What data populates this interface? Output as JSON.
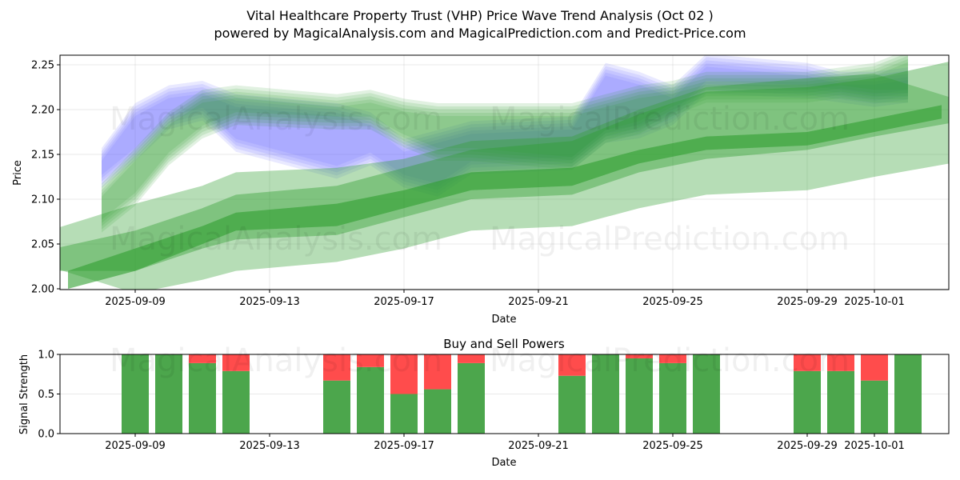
{
  "header": {
    "title": "Vital Healthcare Property Trust (VHP) Price Wave Trend Analysis (Oct 02 )",
    "subtitle": "powered by MagicalAnalysis.com and MagicalPrediction.com and Predict-Price.com"
  },
  "watermarks": [
    "MagicalAnalysis.com",
    "MagicalPrediction.com"
  ],
  "colors": {
    "blue_band": "#6666ff",
    "green_band": "#2e9e2e",
    "buy": "#4ca64c",
    "sell": "#ff4c4c"
  },
  "chart_data": [
    {
      "type": "area",
      "title": "",
      "xlabel": "Date",
      "ylabel": "Price",
      "ylim": [
        2.0,
        2.26
      ],
      "xlim": [
        "2025-09-06",
        "2025-10-04"
      ],
      "yticks": [
        "2.00",
        "2.05",
        "2.10",
        "2.15",
        "2.20",
        "2.25"
      ],
      "xticks": [
        "2025-09-09",
        "2025-09-13",
        "2025-09-17",
        "2025-09-21",
        "2025-09-25",
        "2025-09-29",
        "2025-10-01"
      ],
      "grid": true,
      "series": [
        {
          "name": "history-band-blue",
          "color": "blue",
          "x": [
            "2025-09-08",
            "2025-09-09",
            "2025-09-10",
            "2025-09-11",
            "2025-09-12",
            "2025-09-15",
            "2025-09-16",
            "2025-09-17",
            "2025-09-18",
            "2025-09-19",
            "2025-09-22",
            "2025-09-23",
            "2025-09-24",
            "2025-09-25",
            "2025-09-26",
            "2025-09-29",
            "2025-09-30",
            "2025-10-01",
            "2025-10-02"
          ],
          "upper": [
            2.15,
            2.2,
            2.22,
            2.225,
            2.21,
            2.2,
            2.19,
            2.16,
            2.17,
            2.18,
            2.185,
            2.245,
            2.235,
            2.22,
            2.255,
            2.245,
            2.235,
            2.235,
            2.24
          ],
          "lower": [
            2.12,
            2.15,
            2.185,
            2.195,
            2.16,
            2.13,
            2.145,
            2.12,
            2.11,
            2.135,
            2.14,
            2.17,
            2.175,
            2.19,
            2.225,
            2.22,
            2.215,
            2.21,
            2.215
          ]
        },
        {
          "name": "history-band-green-light",
          "color": "green",
          "x": [
            "2025-09-08",
            "2025-09-09",
            "2025-09-10",
            "2025-09-11",
            "2025-09-12",
            "2025-09-15",
            "2025-09-16",
            "2025-09-17",
            "2025-09-18",
            "2025-09-19",
            "2025-09-22",
            "2025-09-23",
            "2025-09-24",
            "2025-09-25",
            "2025-09-26",
            "2025-09-29",
            "2025-09-30",
            "2025-10-01",
            "2025-10-02"
          ],
          "upper": [
            2.11,
            2.15,
            2.19,
            2.215,
            2.22,
            2.21,
            2.215,
            2.205,
            2.2,
            2.2,
            2.2,
            2.21,
            2.22,
            2.225,
            2.235,
            2.235,
            2.24,
            2.245,
            2.26
          ],
          "lower": [
            2.07,
            2.1,
            2.145,
            2.175,
            2.19,
            2.185,
            2.185,
            2.165,
            2.15,
            2.15,
            2.14,
            2.17,
            2.18,
            2.2,
            2.215,
            2.215,
            2.22,
            2.215,
            2.215
          ]
        },
        {
          "name": "forecast-band-wide",
          "color": "green",
          "x": [
            "2025-09-06",
            "2025-09-09",
            "2025-09-11",
            "2025-09-12",
            "2025-09-15",
            "2025-09-17",
            "2025-09-18",
            "2025-09-19",
            "2025-09-22",
            "2025-09-24",
            "2025-09-26",
            "2025-09-29",
            "2025-10-01",
            "2025-10-04"
          ],
          "upper": [
            2.06,
            2.095,
            2.115,
            2.13,
            2.135,
            2.145,
            2.155,
            2.165,
            2.17,
            2.2,
            2.225,
            2.235,
            2.24,
            2.205
          ],
          "lower": [
            2.03,
            1.995,
            2.01,
            2.02,
            2.03,
            2.045,
            2.055,
            2.065,
            2.07,
            2.09,
            2.105,
            2.11,
            2.125,
            2.145
          ]
        },
        {
          "name": "forecast-band-mid",
          "color": "green",
          "x": [
            "2025-09-06",
            "2025-09-09",
            "2025-09-11",
            "2025-09-12",
            "2025-09-15",
            "2025-09-17",
            "2025-09-18",
            "2025-09-19",
            "2025-09-22",
            "2025-09-24",
            "2025-09-26",
            "2025-09-29",
            "2025-10-01",
            "2025-10-04"
          ],
          "upper": [
            2.04,
            2.065,
            2.09,
            2.105,
            2.115,
            2.135,
            2.145,
            2.155,
            2.165,
            2.195,
            2.22,
            2.225,
            2.235,
            2.26
          ],
          "lower": [
            2.02,
            2.02,
            2.045,
            2.055,
            2.06,
            2.08,
            2.09,
            2.1,
            2.105,
            2.13,
            2.145,
            2.155,
            2.17,
            2.19
          ]
        },
        {
          "name": "forecast-trend-line",
          "color": "green",
          "x": [
            "2025-09-07",
            "2025-09-09",
            "2025-09-11",
            "2025-09-12",
            "2025-09-15",
            "2025-09-17",
            "2025-09-18",
            "2025-09-19",
            "2025-09-22",
            "2025-09-24",
            "2025-09-26",
            "2025-09-29",
            "2025-10-01",
            "2025-10-03"
          ],
          "upper": [
            2.02,
            2.045,
            2.07,
            2.085,
            2.095,
            2.11,
            2.12,
            2.13,
            2.135,
            2.155,
            2.17,
            2.175,
            2.19,
            2.205
          ],
          "lower": [
            2.0,
            2.02,
            2.05,
            2.065,
            2.07,
            2.09,
            2.1,
            2.11,
            2.115,
            2.14,
            2.155,
            2.16,
            2.175,
            2.19
          ]
        }
      ]
    },
    {
      "type": "bar",
      "title": "Buy and Sell Powers",
      "xlabel": "Date",
      "ylabel": "Signal Strength",
      "ylim": [
        0,
        1.0
      ],
      "yticks": [
        "0.0",
        "0.5",
        "1.0"
      ],
      "xticks": [
        "2025-09-09",
        "2025-09-13",
        "2025-09-17",
        "2025-09-21",
        "2025-09-25",
        "2025-09-29",
        "2025-10-01"
      ],
      "grid": true,
      "categories": [
        "2025-09-09",
        "2025-09-10",
        "2025-09-11",
        "2025-09-12",
        "2025-09-15",
        "2025-09-16",
        "2025-09-17",
        "2025-09-18",
        "2025-09-19",
        "2025-09-22",
        "2025-09-23",
        "2025-09-24",
        "2025-09-25",
        "2025-09-26",
        "2025-09-29",
        "2025-09-30",
        "2025-10-01",
        "2025-10-02"
      ],
      "series": [
        {
          "name": "Buy",
          "values": [
            1.0,
            1.0,
            0.89,
            0.79,
            0.67,
            0.84,
            0.5,
            0.56,
            0.89,
            0.73,
            1.0,
            0.95,
            0.89,
            1.0,
            0.79,
            0.79,
            0.67,
            1.0
          ]
        },
        {
          "name": "Sell",
          "values": [
            0.0,
            0.0,
            0.11,
            0.21,
            0.33,
            0.16,
            0.5,
            0.44,
            0.11,
            0.27,
            0.0,
            0.05,
            0.11,
            0.0,
            0.21,
            0.21,
            0.33,
            0.0
          ]
        }
      ]
    }
  ]
}
